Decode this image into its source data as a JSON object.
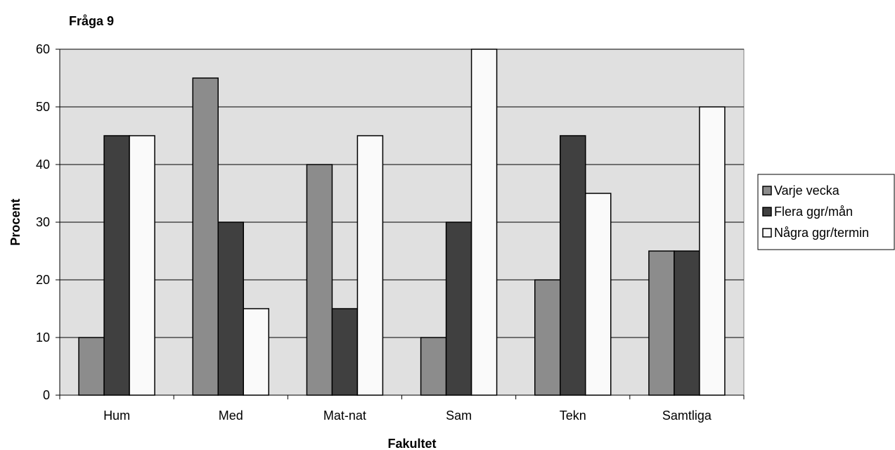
{
  "chart_data": {
    "type": "bar",
    "title": "Fråga 9",
    "xlabel": "Fakultet",
    "ylabel": "Procent",
    "categories": [
      "Hum",
      "Med",
      "Mat-nat",
      "Sam",
      "Tekn",
      "Samtliga"
    ],
    "series": [
      {
        "name": "Varje vecka",
        "values": [
          10,
          55,
          40,
          10,
          20,
          25
        ],
        "color": "#8c8c8c"
      },
      {
        "name": "Flera ggr/mån",
        "values": [
          45,
          30,
          15,
          30,
          45,
          25
        ],
        "color": "#404040"
      },
      {
        "name": "Några ggr/termin",
        "values": [
          45,
          15,
          45,
          60,
          35,
          50
        ],
        "color": "#fafafa"
      }
    ],
    "ylim": [
      0,
      60
    ],
    "yticks": [
      0,
      10,
      20,
      30,
      40,
      50,
      60
    ],
    "grid": true,
    "plot_background": "#e0e0e0",
    "legend_position": "right"
  }
}
